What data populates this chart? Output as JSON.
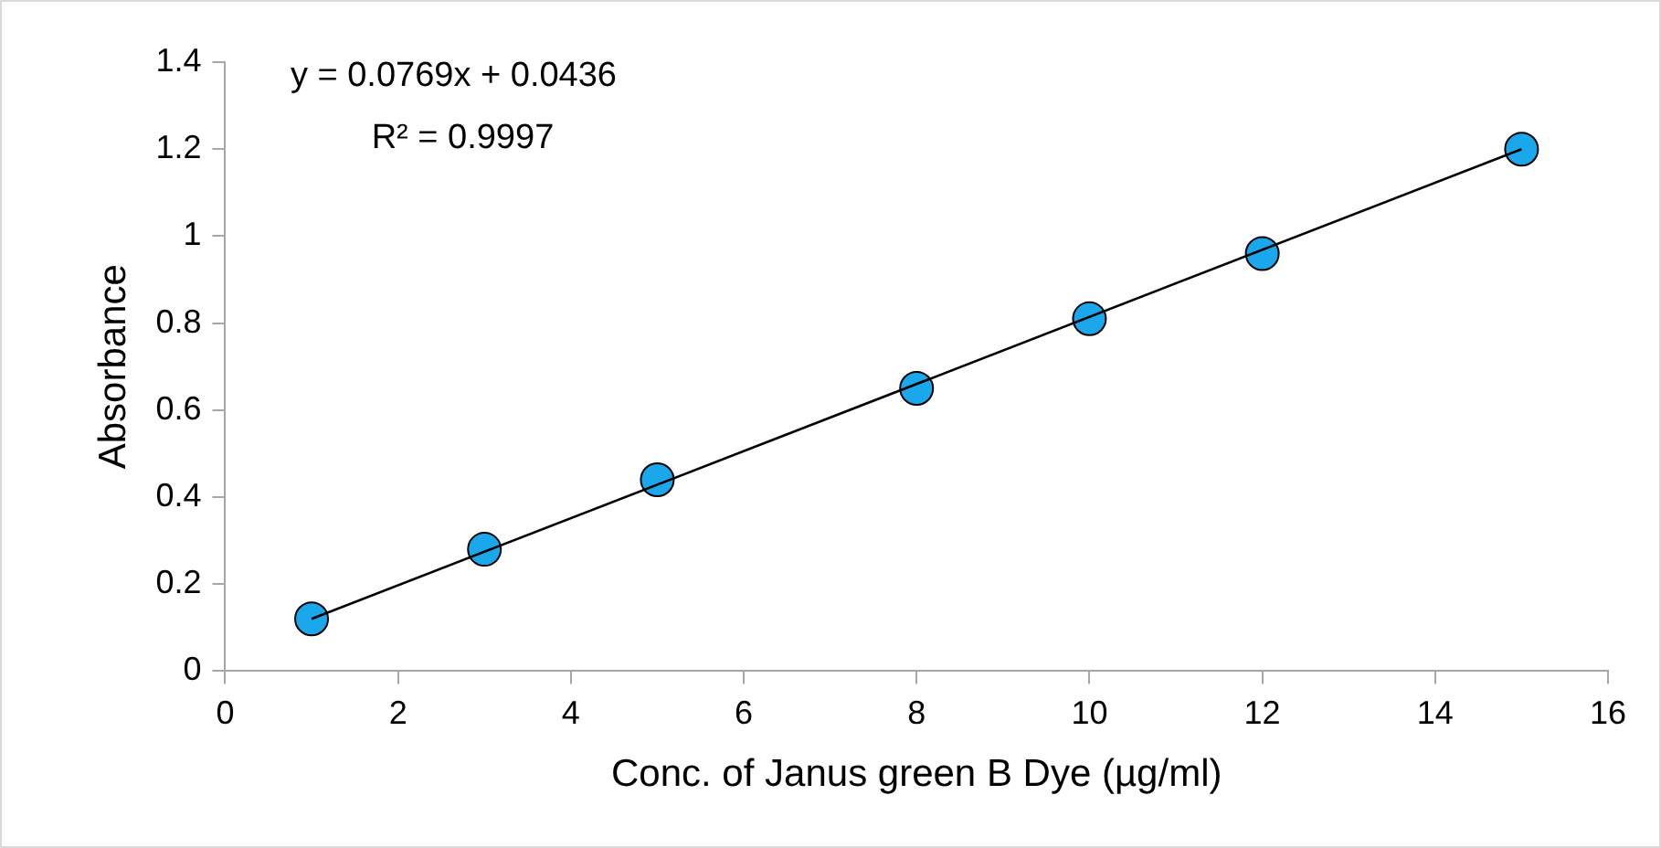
{
  "chart_data": {
    "type": "scatter",
    "xlabel": "Conc. of Janus green B Dye (µg/ml)",
    "ylabel": "Absorbance",
    "annotations": [
      "y = 0.0769x + 0.0436",
      "R² = 0.9997"
    ],
    "series": [
      {
        "type": "line",
        "color": "#000000",
        "x": [
          1,
          15
        ],
        "values": [
          0.12,
          1.2
        ]
      },
      {
        "type": "scatter",
        "color": "#1aa7ec",
        "marker": "circle",
        "x": [
          1,
          3,
          5,
          8,
          10,
          12,
          15
        ],
        "values": [
          0.12,
          0.28,
          0.44,
          0.65,
          0.81,
          0.96,
          1.2
        ]
      }
    ],
    "grid": false,
    "legend": false,
    "xlim": [
      0,
      16
    ],
    "xticks": [
      0,
      2,
      4,
      6,
      8,
      10,
      12,
      14,
      16
    ],
    "ylim": [
      0,
      1.4
    ],
    "yticks": [
      0,
      0.2,
      0.4,
      0.6,
      0.8,
      1,
      1.2,
      1.4
    ]
  }
}
